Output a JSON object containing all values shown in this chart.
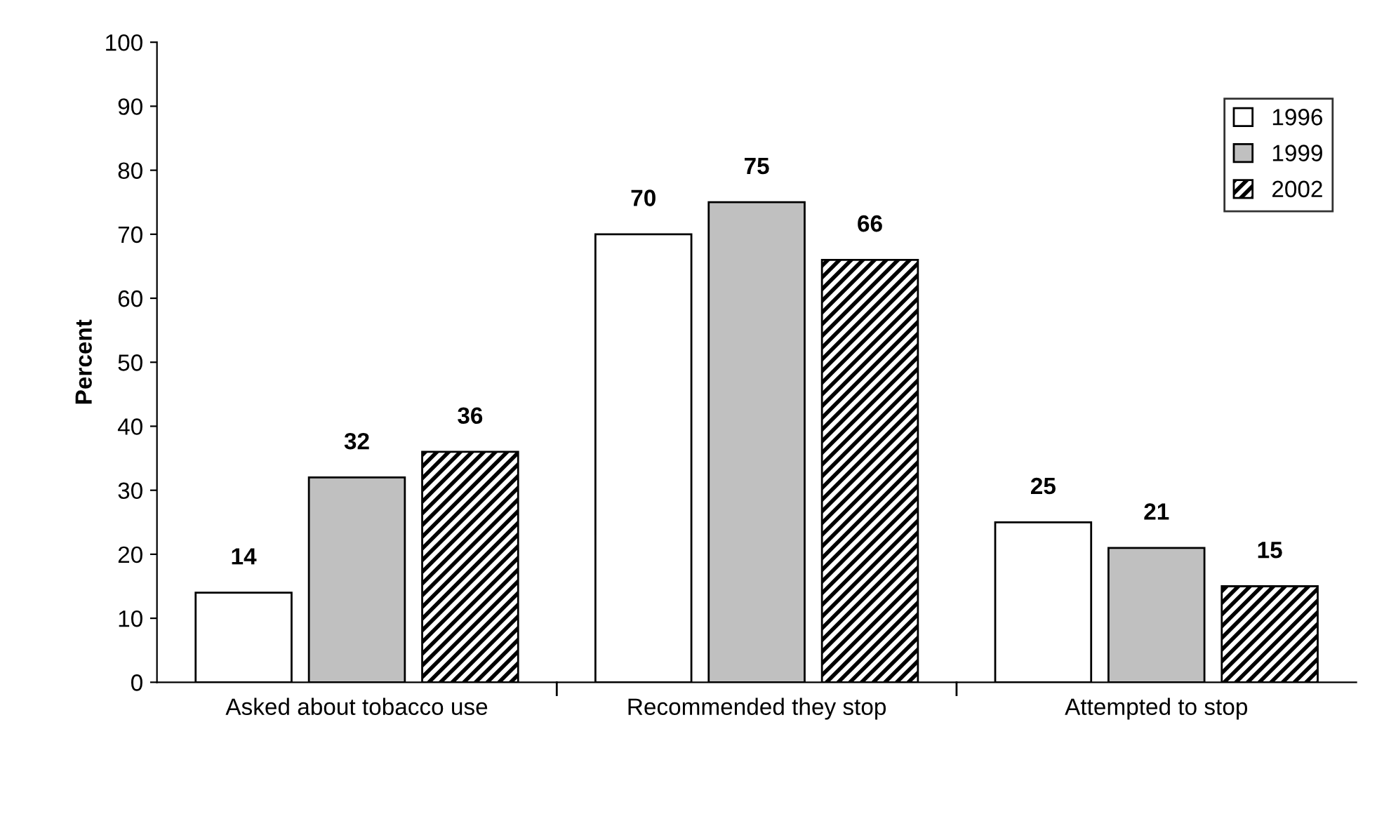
{
  "chart_data": {
    "type": "bar",
    "ylabel": "Percent",
    "categories": [
      "Asked about tobacco use",
      "Recommended they stop",
      "Attempted to stop"
    ],
    "series": [
      {
        "name": "1996",
        "color": "#ffffff",
        "values": [
          14,
          70,
          25
        ]
      },
      {
        "name": "1999",
        "color": "#c0c0c0",
        "values": [
          32,
          75,
          21
        ]
      },
      {
        "name": "2002",
        "color": "#000000",
        "values": [
          36,
          66,
          15
        ]
      }
    ],
    "ylim": [
      0,
      100
    ],
    "yticks": [
      0,
      10,
      20,
      30,
      40,
      50,
      60,
      70,
      80,
      90,
      100
    ],
    "data_labels": true,
    "legend": "top right",
    "grid": false
  }
}
